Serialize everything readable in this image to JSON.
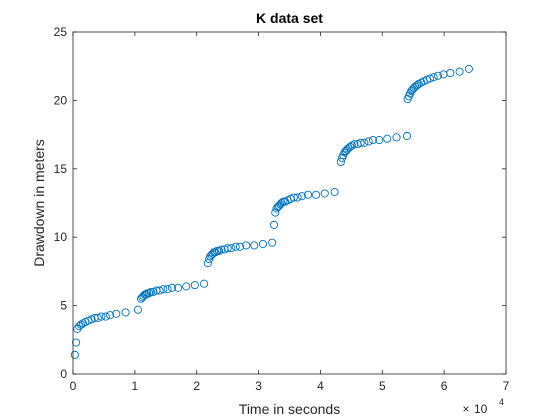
{
  "chart_data": {
    "type": "scatter",
    "title": "K data set",
    "xlabel": "Time in seconds",
    "ylabel": "Drawdown in meters",
    "x_exponent_label": "10",
    "x_exponent_power": "4",
    "xlim": [
      0,
      70000
    ],
    "ylim": [
      0,
      25
    ],
    "x_ticks": [
      0,
      10000,
      20000,
      30000,
      40000,
      50000,
      60000,
      70000
    ],
    "x_tick_labels": [
      "0",
      "1",
      "2",
      "3",
      "4",
      "5",
      "6",
      "7"
    ],
    "y_ticks": [
      0,
      5,
      10,
      15,
      20,
      25
    ],
    "y_tick_labels": [
      "0",
      "5",
      "10",
      "15",
      "20",
      "25"
    ],
    "grid": false,
    "marker": "circle-open",
    "marker_color": "#0072BD",
    "x": [
      300,
      500,
      700,
      1000,
      1300,
      1600,
      2000,
      2500,
      3000,
      3500,
      4000,
      4600,
      5300,
      6000,
      7000,
      8500,
      10500,
      11000,
      11200,
      11400,
      11600,
      11800,
      12000,
      12300,
      12600,
      13000,
      13500,
      14000,
      14600,
      15300,
      16000,
      17000,
      18300,
      19700,
      21200,
      21800,
      22000,
      22200,
      22400,
      22600,
      22800,
      23000,
      23300,
      23600,
      24000,
      24500,
      25000,
      25600,
      26300,
      27000,
      28000,
      29300,
      30700,
      32200,
      32500,
      32700,
      32900,
      33100,
      33300,
      33500,
      33700,
      34000,
      34300,
      34700,
      35200,
      35700,
      36300,
      37000,
      38000,
      39300,
      40700,
      42300,
      43300,
      43500,
      43700,
      43900,
      44100,
      44300,
      44500,
      44800,
      45100,
      45500,
      46000,
      46500,
      47100,
      47800,
      48500,
      49500,
      50800,
      52300,
      54000,
      54100,
      54300,
      54500,
      54700,
      54900,
      55100,
      55300,
      55600,
      55900,
      56300,
      56700,
      57200,
      57700,
      58300,
      59000,
      59900,
      61000,
      62500,
      64000
    ],
    "y": [
      1.4,
      2.3,
      3.3,
      3.5,
      3.6,
      3.7,
      3.8,
      3.9,
      4.0,
      4.1,
      4.1,
      4.2,
      4.2,
      4.3,
      4.4,
      4.5,
      4.7,
      5.5,
      5.6,
      5.7,
      5.8,
      5.8,
      5.9,
      5.9,
      6.0,
      6.0,
      6.1,
      6.1,
      6.2,
      6.2,
      6.3,
      6.3,
      6.4,
      6.5,
      6.6,
      8.1,
      8.4,
      8.6,
      8.7,
      8.8,
      8.9,
      8.9,
      9.0,
      9.0,
      9.1,
      9.1,
      9.2,
      9.2,
      9.3,
      9.3,
      9.4,
      9.4,
      9.5,
      9.6,
      10.9,
      11.8,
      12.1,
      12.2,
      12.3,
      12.4,
      12.5,
      12.6,
      12.6,
      12.7,
      12.8,
      12.9,
      12.9,
      13.0,
      13.1,
      13.1,
      13.2,
      13.3,
      15.5,
      15.8,
      16.0,
      16.2,
      16.3,
      16.4,
      16.5,
      16.6,
      16.7,
      16.8,
      16.8,
      16.9,
      16.9,
      17.0,
      17.1,
      17.1,
      17.2,
      17.3,
      17.4,
      20.1,
      20.3,
      20.5,
      20.7,
      20.8,
      20.9,
      21.0,
      21.1,
      21.2,
      21.3,
      21.4,
      21.5,
      21.6,
      21.7,
      21.8,
      21.9,
      22.0,
      22.1,
      22.3
    ]
  }
}
